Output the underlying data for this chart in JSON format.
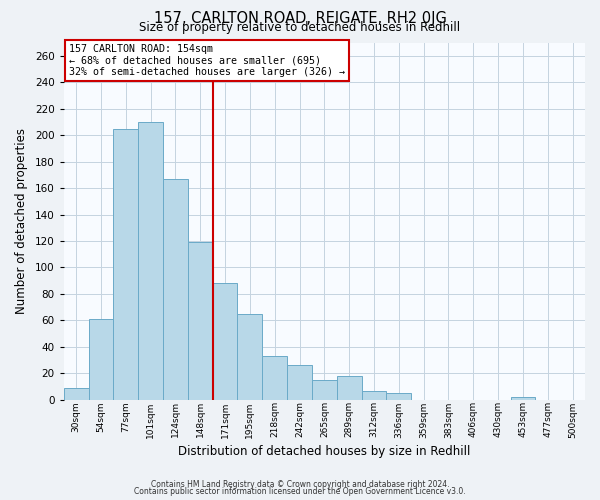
{
  "title": "157, CARLTON ROAD, REIGATE, RH2 0JG",
  "subtitle": "Size of property relative to detached houses in Redhill",
  "xlabel": "Distribution of detached houses by size in Redhill",
  "ylabel": "Number of detached properties",
  "bar_labels": [
    "30sqm",
    "54sqm",
    "77sqm",
    "101sqm",
    "124sqm",
    "148sqm",
    "171sqm",
    "195sqm",
    "218sqm",
    "242sqm",
    "265sqm",
    "289sqm",
    "312sqm",
    "336sqm",
    "359sqm",
    "383sqm",
    "406sqm",
    "430sqm",
    "453sqm",
    "477sqm",
    "500sqm"
  ],
  "bar_values": [
    9,
    61,
    205,
    210,
    167,
    119,
    88,
    65,
    33,
    26,
    15,
    18,
    7,
    5,
    0,
    0,
    0,
    0,
    2,
    0,
    0
  ],
  "bar_color": "#b8d8e8",
  "bar_edge_color": "#6aaac8",
  "vline_x": 5.5,
  "vline_color": "#cc0000",
  "annotation_title": "157 CARLTON ROAD: 154sqm",
  "annotation_line1": "← 68% of detached houses are smaller (695)",
  "annotation_line2": "32% of semi-detached houses are larger (326) →",
  "annotation_box_color": "#ffffff",
  "annotation_box_edge": "#cc0000",
  "ylim": [
    0,
    270
  ],
  "yticks": [
    0,
    20,
    40,
    60,
    80,
    100,
    120,
    140,
    160,
    180,
    200,
    220,
    240,
    260
  ],
  "footer1": "Contains HM Land Registry data © Crown copyright and database right 2024.",
  "footer2": "Contains public sector information licensed under the Open Government Licence v3.0.",
  "bg_color": "#eef2f6",
  "plot_bg_color": "#f8fbff",
  "grid_color": "#c5d3e0"
}
